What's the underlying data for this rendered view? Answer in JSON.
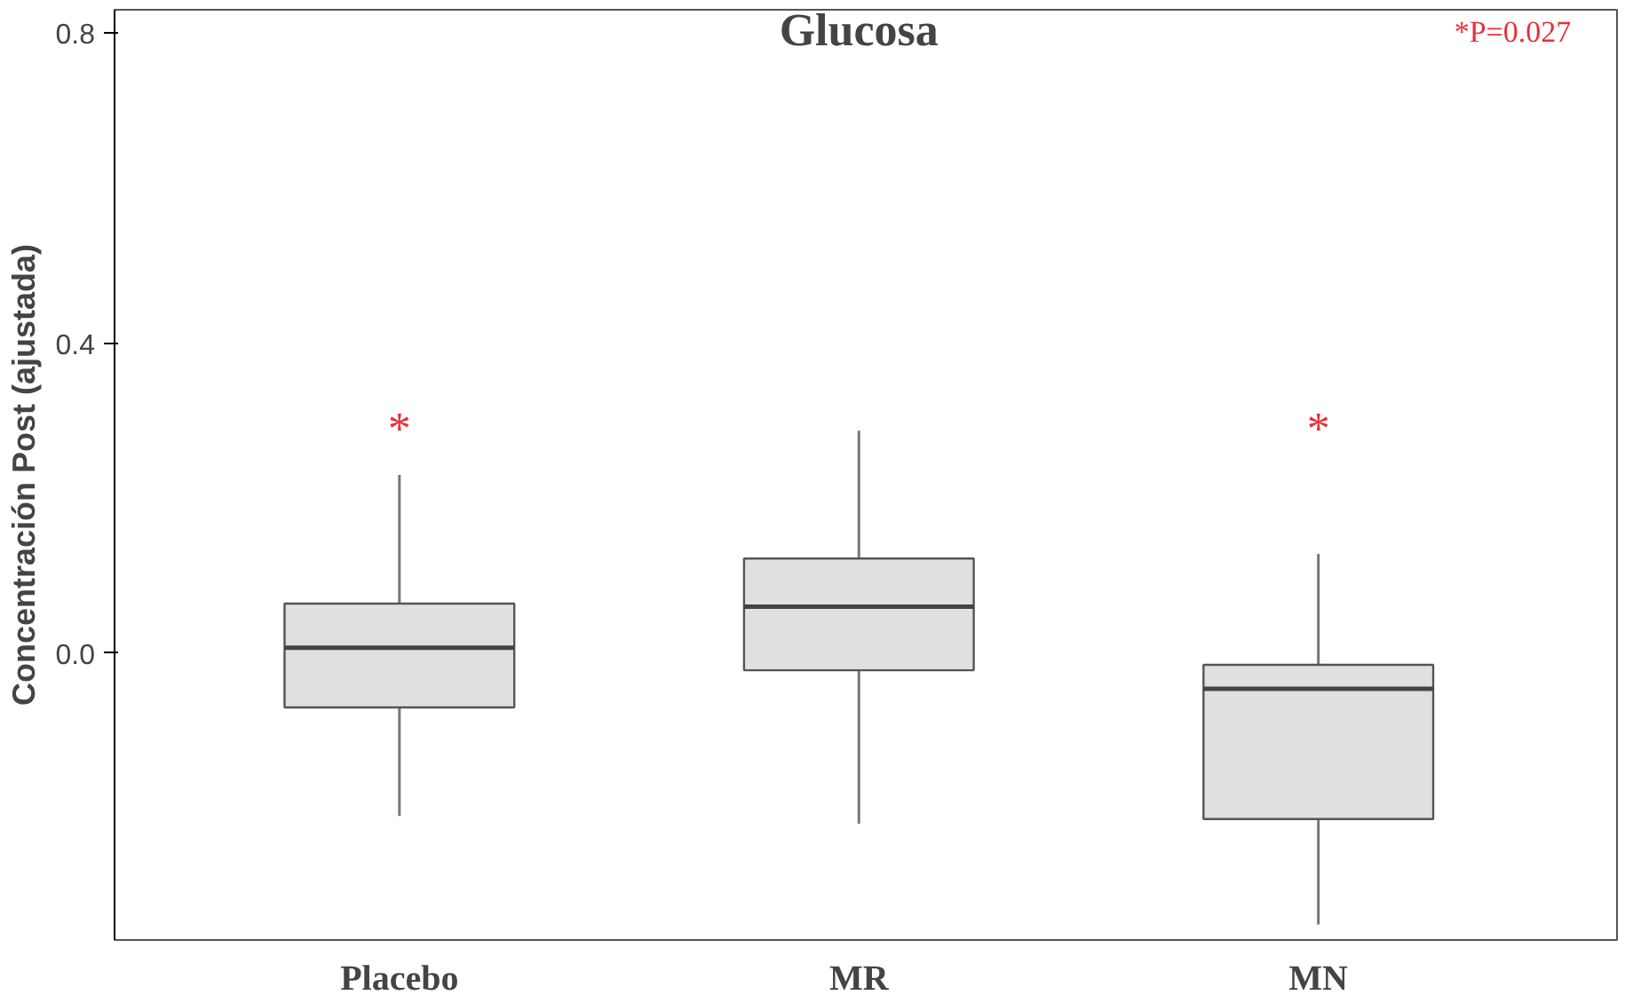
{
  "chart_data": {
    "type": "box",
    "title": "Glucosa",
    "ylabel": "Concentración Post (ajustada)",
    "categories": [
      "Placebo",
      "MR",
      "MN"
    ],
    "boxes": [
      {
        "low": -0.21,
        "q1": -0.07,
        "median": 0.007,
        "q3": 0.064,
        "high": 0.23
      },
      {
        "low": -0.22,
        "q1": -0.022,
        "median": 0.06,
        "q3": 0.122,
        "high": 0.287
      },
      {
        "low": -0.35,
        "q1": -0.214,
        "median": -0.046,
        "q3": -0.015,
        "high": 0.128
      }
    ],
    "color": "#e0e0e0",
    "ylim": [
      -0.37,
      0.83
    ],
    "yticks": [
      {
        "value": 0,
        "label": "0.0"
      },
      0.4,
      0.8
    ],
    "grid": false,
    "annotations": [
      "*P=0.027",
      "*",
      "*"
    ]
  }
}
